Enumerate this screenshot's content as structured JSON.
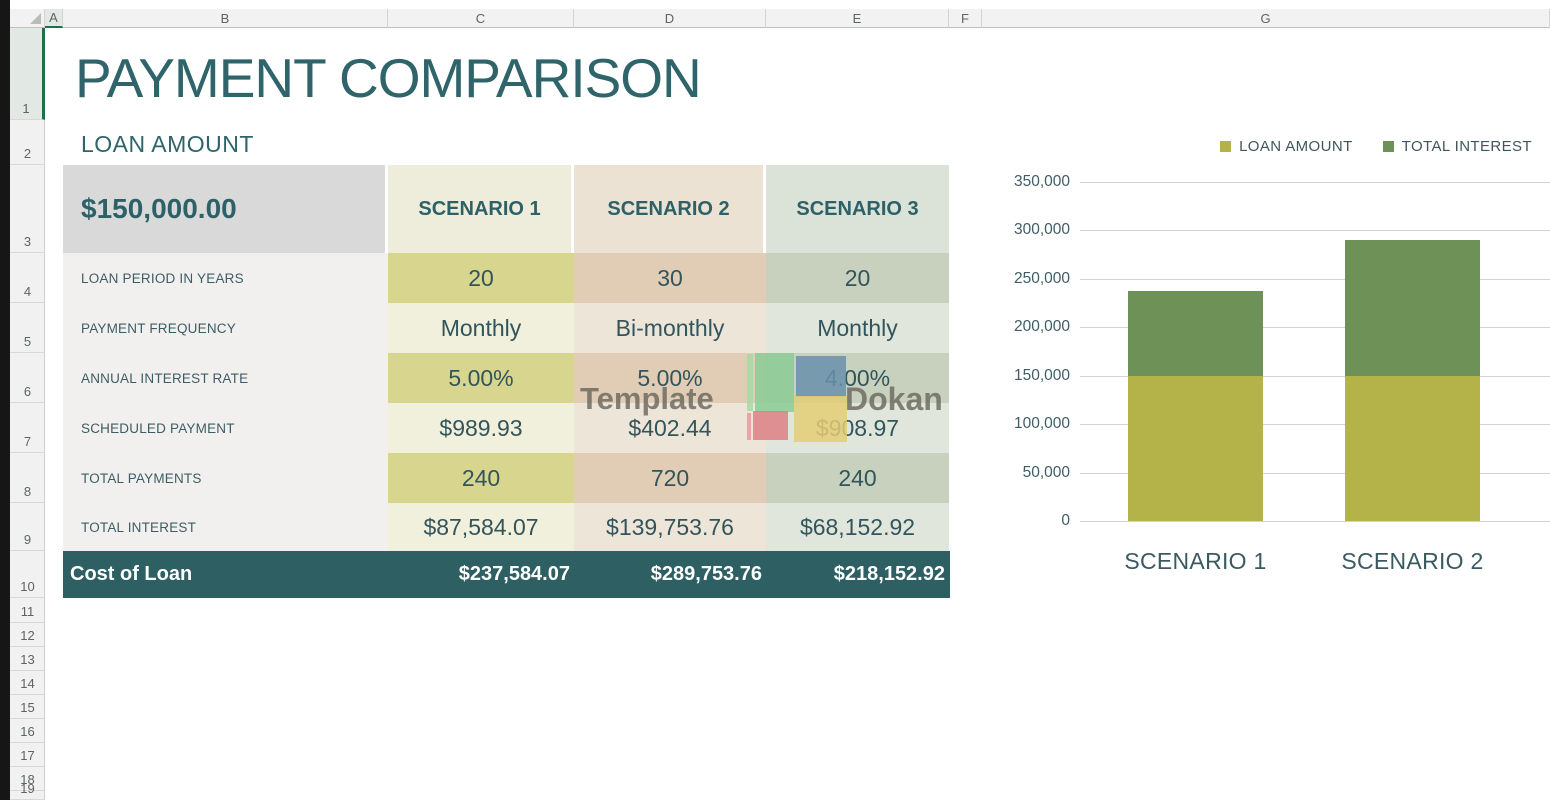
{
  "spreadsheet": {
    "column_headers": [
      "A",
      "B",
      "C",
      "D",
      "E",
      "F",
      "G"
    ],
    "row_headers": [
      "1",
      "2",
      "3",
      "4",
      "5",
      "6",
      "7",
      "8",
      "9",
      "10",
      "11",
      "12",
      "13",
      "14",
      "15",
      "16",
      "17",
      "18",
      "19"
    ],
    "selected_column": "A",
    "selected_row": "1"
  },
  "sheet": {
    "title": "PAYMENT COMPARISON",
    "section_label": "LOAN AMOUNT"
  },
  "table": {
    "loan_amount": "$150,000.00",
    "scenario_headers": [
      "SCENARIO 1",
      "SCENARIO 2",
      "SCENARIO 3"
    ],
    "rows": [
      {
        "label": "LOAN PERIOD IN YEARS",
        "values": [
          "20",
          "30",
          "20"
        ],
        "band": "dark"
      },
      {
        "label": "PAYMENT FREQUENCY",
        "values": [
          "Monthly",
          "Bi-monthly",
          "Monthly"
        ],
        "band": "light"
      },
      {
        "label": "ANNUAL INTEREST RATE",
        "values": [
          "5.00%",
          "5.00%",
          "4.00%"
        ],
        "band": "dark"
      },
      {
        "label": "SCHEDULED PAYMENT",
        "values": [
          "$989.93",
          "$402.44",
          "$908.97"
        ],
        "band": "light"
      },
      {
        "label": "TOTAL PAYMENTS",
        "values": [
          "240",
          "720",
          "240"
        ],
        "band": "dark"
      },
      {
        "label": "TOTAL INTEREST",
        "values": [
          "$87,584.07",
          "$139,753.76",
          "$68,152.92"
        ],
        "band": "light"
      }
    ],
    "summary": {
      "label": "Cost of Loan",
      "values": [
        "$237,584.07",
        "$289,753.76",
        "$218,152.92"
      ]
    }
  },
  "watermark": {
    "left_text": "Template",
    "right_text": "Dokan",
    "square_colors": {
      "light_green": "#a9d8a4",
      "green": "#8ccb96",
      "blue": "#6a90ab",
      "yellow": "#e3cc74",
      "red": "#dc7f84"
    }
  },
  "chart_data": {
    "type": "bar",
    "stacked": true,
    "categories": [
      "SCENARIO 1",
      "SCENARIO 2"
    ],
    "series": [
      {
        "name": "LOAN AMOUNT",
        "values": [
          150000,
          150000
        ],
        "color": "#b4b349"
      },
      {
        "name": "TOTAL INTEREST",
        "values": [
          87584.07,
          139753.76
        ],
        "color": "#6e9157"
      }
    ],
    "title": "",
    "xlabel": "",
    "ylabel": "",
    "ylim": [
      0,
      350000
    ],
    "yticks": [
      0,
      50000,
      100000,
      150000,
      200000,
      250000,
      300000,
      350000
    ],
    "ytick_labels": [
      "0",
      "50,000",
      "100,000",
      "150,000",
      "200,000",
      "250,000",
      "300,000",
      "350,000"
    ],
    "grid": true,
    "legend_position": "top-right"
  },
  "colors": {
    "accent_teal": "#2f646b",
    "summary_row_bg": "#2d5f63",
    "label_column_bg": "#f1f0ee",
    "loan_amount_cell_bg": "#d9d9d9",
    "selection_green": "#1e7145",
    "scenario_columns": [
      {
        "header": "#eeeddb",
        "dark": "#d8d58e",
        "light": "#f1f0dc"
      },
      {
        "header": "#ebe2d4",
        "dark": "#e1cdb5",
        "light": "#eee5d9"
      },
      {
        "header": "#dbe2d7",
        "dark": "#c7d1bd",
        "light": "#e0e6dc"
      }
    ]
  }
}
